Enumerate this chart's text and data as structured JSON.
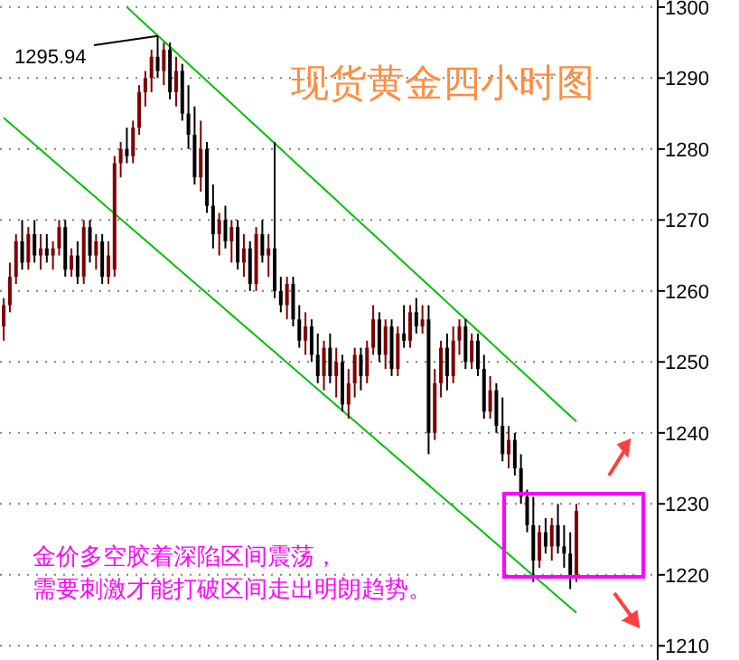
{
  "chart_data": {
    "type": "candlestick",
    "title": "现货黄金四小时图",
    "categories": [
      null,
      null,
      null,
      null,
      null,
      null,
      null,
      null,
      null,
      null,
      null,
      null,
      null,
      null,
      null,
      null,
      null,
      null,
      null,
      null,
      null,
      null,
      null,
      null,
      null,
      null,
      null,
      null,
      null,
      null,
      null,
      null,
      null,
      null,
      null,
      null,
      null,
      null,
      null,
      null,
      null,
      null,
      null,
      null,
      null,
      null,
      null,
      null,
      null,
      null,
      null,
      null,
      null,
      null,
      null,
      null,
      null,
      null,
      null,
      null,
      null,
      null,
      null,
      null,
      null,
      null,
      null,
      null,
      null,
      null,
      null,
      null,
      null,
      null,
      null,
      null,
      null,
      null,
      null,
      null,
      null,
      null,
      null,
      null,
      null,
      null,
      null,
      null,
      null,
      null,
      null,
      null,
      null,
      null
    ],
    "ohlc": [
      [
        1255,
        1259,
        1253,
        1258
      ],
      [
        1258,
        1264,
        1257,
        1262
      ],
      [
        1262,
        1268,
        1261,
        1267
      ],
      [
        1267,
        1270,
        1263,
        1264
      ],
      [
        1264,
        1269,
        1263,
        1268
      ],
      [
        1268,
        1270,
        1264,
        1265
      ],
      [
        1265,
        1268,
        1263,
        1266
      ],
      [
        1266,
        1268,
        1264,
        1265
      ],
      [
        1265,
        1267,
        1263,
        1266
      ],
      [
        1266,
        1270,
        1265,
        1269
      ],
      [
        1269,
        1270,
        1262,
        1263
      ],
      [
        1263,
        1266,
        1262,
        1265
      ],
      [
        1265,
        1267,
        1261,
        1262
      ],
      [
        1262,
        1270,
        1261,
        1269
      ],
      [
        1269,
        1270,
        1264,
        1265
      ],
      [
        1265,
        1268,
        1263,
        1267
      ],
      [
        1267,
        1268,
        1261,
        1262
      ],
      [
        1262,
        1267,
        1261,
        1265
      ],
      [
        1263,
        1279,
        1262,
        1278
      ],
      [
        1278,
        1281,
        1276,
        1280
      ],
      [
        1280,
        1283,
        1278,
        1279
      ],
      [
        1279,
        1284,
        1278,
        1283
      ],
      [
        1283,
        1289,
        1282,
        1288
      ],
      [
        1288,
        1291,
        1286,
        1290
      ],
      [
        1290,
        1294,
        1288,
        1293
      ],
      [
        1293,
        1295.94,
        1290,
        1291
      ],
      [
        1291,
        1295,
        1289,
        1294
      ],
      [
        1294,
        1295,
        1287,
        1288
      ],
      [
        1288,
        1293,
        1286,
        1291
      ],
      [
        1291,
        1292,
        1284,
        1285
      ],
      [
        1285,
        1289,
        1280,
        1282
      ],
      [
        1282,
        1286,
        1275,
        1276
      ],
      [
        1276,
        1284,
        1274,
        1280
      ],
      [
        1280,
        1281,
        1271,
        1272
      ],
      [
        1272,
        1275,
        1266,
        1268
      ],
      [
        1268,
        1271,
        1265,
        1270
      ],
      [
        1270,
        1272,
        1266,
        1267
      ],
      [
        1267,
        1270,
        1264,
        1269
      ],
      [
        1269,
        1270,
        1263,
        1264
      ],
      [
        1264,
        1268,
        1262,
        1266
      ],
      [
        1266,
        1267,
        1260,
        1261
      ],
      [
        1261,
        1269,
        1260,
        1268
      ],
      [
        1268,
        1270,
        1264,
        1265
      ],
      [
        1265,
        1268,
        1262,
        1266
      ],
      [
        1266,
        1281,
        1259,
        1260
      ],
      [
        1260,
        1262,
        1257,
        1258
      ],
      [
        1258,
        1262,
        1256,
        1261
      ],
      [
        1261,
        1262,
        1255,
        1256
      ],
      [
        1256,
        1258,
        1252,
        1253
      ],
      [
        1253,
        1257,
        1251,
        1255
      ],
      [
        1255,
        1256,
        1250,
        1251
      ],
      [
        1251,
        1254,
        1247,
        1248
      ],
      [
        1248,
        1253,
        1246,
        1252
      ],
      [
        1252,
        1254,
        1247,
        1248
      ],
      [
        1248,
        1252,
        1245,
        1250
      ],
      [
        1250,
        1251,
        1243,
        1244
      ],
      [
        1244,
        1249,
        1242,
        1247
      ],
      [
        1247,
        1252,
        1245,
        1251
      ],
      [
        1251,
        1252,
        1246,
        1248
      ],
      [
        1248,
        1253,
        1247,
        1252
      ],
      [
        1252,
        1258,
        1251,
        1256
      ],
      [
        1256,
        1257,
        1250,
        1251
      ],
      [
        1251,
        1256,
        1249,
        1255
      ],
      [
        1255,
        1256,
        1248,
        1249
      ],
      [
        1249,
        1255,
        1248,
        1254
      ],
      [
        1254,
        1258,
        1252,
        1253
      ],
      [
        1253,
        1258,
        1252,
        1257
      ],
      [
        1257,
        1259,
        1254,
        1255
      ],
      [
        1255,
        1258,
        1254,
        1256
      ],
      [
        1256,
        1258,
        1237,
        1240
      ],
      [
        1240,
        1249,
        1239,
        1247
      ],
      [
        1247,
        1253,
        1245,
        1252
      ],
      [
        1252,
        1254,
        1246,
        1248
      ],
      [
        1248,
        1255,
        1247,
        1253
      ],
      [
        1253,
        1256,
        1251,
        1255
      ],
      [
        1255,
        1256,
        1249,
        1250
      ],
      [
        1250,
        1254,
        1249,
        1253
      ],
      [
        1253,
        1254,
        1248,
        1249
      ],
      [
        1249,
        1251,
        1242,
        1243
      ],
      [
        1243,
        1248,
        1242,
        1246
      ],
      [
        1246,
        1247,
        1240,
        1241
      ],
      [
        1241,
        1245,
        1236,
        1237
      ],
      [
        1237,
        1241,
        1235,
        1239
      ],
      [
        1239,
        1240,
        1234,
        1235
      ],
      [
        1235,
        1237,
        1230,
        1231
      ],
      [
        1231,
        1232,
        1226,
        1227
      ],
      [
        1227,
        1231,
        1219,
        1222
      ],
      [
        1222,
        1227,
        1221,
        1226
      ],
      [
        1226,
        1228,
        1223,
        1224
      ],
      [
        1224,
        1228,
        1222,
        1227
      ],
      [
        1227,
        1230,
        1223,
        1224
      ],
      [
        1224,
        1227,
        1221,
        1223
      ],
      [
        1223,
        1226,
        1218,
        1220
      ],
      [
        1220,
        1230,
        1219,
        1229
      ]
    ],
    "series": [
      {
        "type": "line",
        "color": "#00c000",
        "values": [
          null,
          null,
          null,
          null,
          null,
          null,
          null,
          null,
          null,
          null,
          null,
          null,
          null,
          null,
          null,
          null,
          null,
          null,
          null,
          null,
          1300.0,
          1299.2,
          1298.4,
          1297.6,
          1296.8,
          1296.0,
          1295.2,
          1294.4,
          1293.6,
          1292.8,
          1292.0,
          1291.2,
          1290.4,
          1289.6,
          1288.8,
          1288.0,
          1287.2,
          1286.4,
          1285.6,
          1284.8,
          1284.0,
          1283.2,
          1282.4,
          1281.6,
          1280.8,
          1280.0,
          1279.2,
          1278.4,
          1277.6,
          1276.8,
          1276.0,
          1275.2,
          1274.4,
          1273.6,
          1272.8,
          1272.0,
          1271.2,
          1270.4,
          1269.6,
          1268.8,
          1268.0,
          1267.2,
          1266.4,
          1265.6,
          1264.8,
          1264.0,
          1263.2,
          1262.4,
          1261.6,
          1260.8,
          1260.0,
          1259.2,
          1258.4,
          1257.6,
          1256.8,
          1256.0,
          1255.2,
          1254.4,
          1253.6,
          1252.8,
          1252.0,
          1251.2,
          1250.4,
          1249.6,
          1248.8,
          1248.0,
          1247.2,
          1246.4,
          1245.6,
          1244.8,
          1244.0,
          1243.2,
          1242.4,
          1241.6
        ]
      },
      {
        "type": "line",
        "color": "#00c000",
        "values": [
          1284.4,
          1283.65,
          1282.9,
          1282.15,
          1281.4,
          1280.65,
          1279.9,
          1279.15,
          1278.4,
          1277.65,
          1276.9,
          1276.15,
          1275.4,
          1274.65,
          1273.9,
          1273.15,
          1272.4,
          1271.65,
          1270.9,
          1270.15,
          1269.4,
          1268.65,
          1267.9,
          1267.15,
          1266.4,
          1265.65,
          1264.9,
          1264.15,
          1263.4,
          1262.65,
          1261.9,
          1261.15,
          1260.4,
          1259.65,
          1258.9,
          1258.15,
          1257.4,
          1256.65,
          1255.9,
          1255.15,
          1254.4,
          1253.65,
          1252.9,
          1252.15,
          1251.4,
          1250.65,
          1249.9,
          1249.15,
          1248.4,
          1247.65,
          1246.9,
          1246.15,
          1245.4,
          1244.65,
          1243.9,
          1243.15,
          1242.4,
          1241.65,
          1240.9,
          1240.15,
          1239.4,
          1238.65,
          1237.9,
          1237.15,
          1236.4,
          1235.65,
          1234.9,
          1234.15,
          1233.4,
          1232.65,
          1231.9,
          1231.15,
          1230.4,
          1229.65,
          1228.9,
          1228.15,
          1227.4,
          1226.65,
          1225.9,
          1225.15,
          1224.4,
          1223.65,
          1222.9,
          1222.15,
          1221.4,
          1220.65,
          1219.9,
          1219.15,
          1218.4,
          1217.65,
          1216.9,
          1216.15,
          1215.4,
          1214.65
        ]
      }
    ],
    "ylim": [
      1208,
      1301
    ],
    "yticks": [
      1210,
      1220,
      1230,
      1240,
      1250,
      1260,
      1270,
      1280,
      1290,
      1300
    ],
    "grid": "y",
    "annotations": [
      "1295.94",
      "金价多空胶着深陷区间震荡，需要刺激才能打破区间走出明朗趋势。"
    ]
  }
}
